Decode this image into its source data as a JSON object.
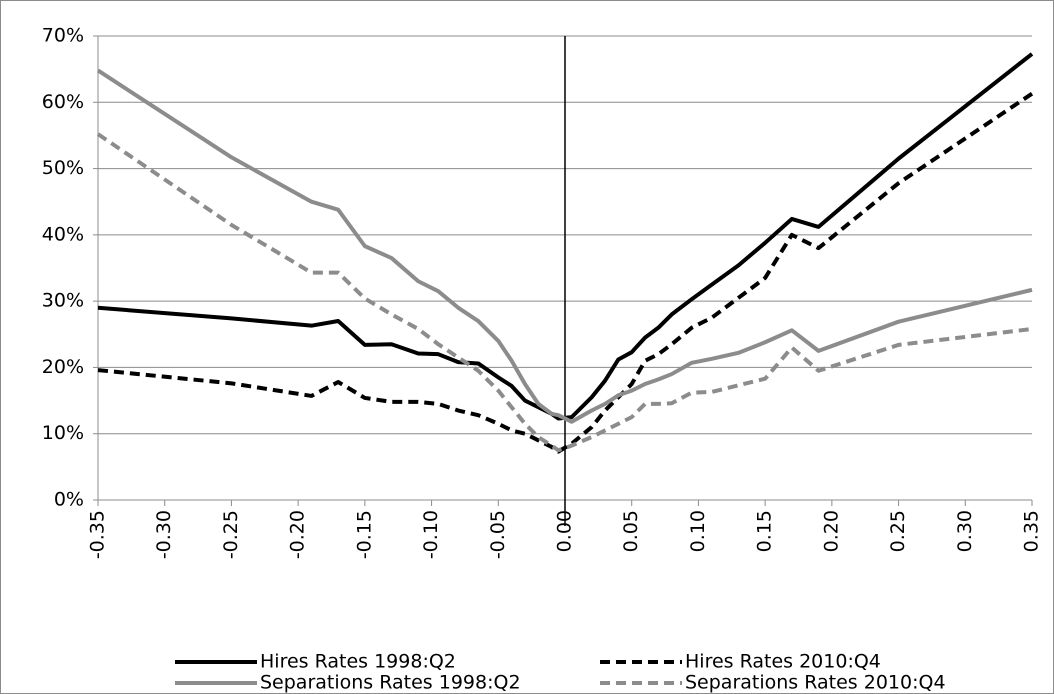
{
  "chart_data": {
    "type": "line",
    "x": [
      -0.35,
      -0.25,
      -0.19,
      -0.17,
      -0.15,
      -0.13,
      -0.11,
      -0.095,
      -0.08,
      -0.065,
      -0.05,
      -0.04,
      -0.03,
      -0.02,
      -0.01,
      -0.005,
      0.005,
      0.02,
      0.03,
      0.04,
      0.05,
      0.06,
      0.07,
      0.08,
      0.095,
      0.11,
      0.13,
      0.15,
      0.17,
      0.19,
      0.25,
      0.35
    ],
    "series": [
      {
        "name": "Hires Rates 1998:Q2",
        "color": "#000000",
        "style": "solid",
        "values": [
          29,
          27.4,
          26.3,
          27,
          23.4,
          23.5,
          22.1,
          22,
          20.8,
          20.6,
          18.5,
          17.2,
          15,
          14,
          13,
          12.3,
          12.5,
          15.5,
          18,
          21.2,
          22.3,
          24.5,
          26,
          28,
          30.3,
          32.5,
          35.4,
          38.8,
          42.4,
          41.2,
          51.5,
          67.3
        ]
      },
      {
        "name": "Hires Rates 2010:Q4",
        "color": "#000000",
        "style": "dashed",
        "values": [
          19.6,
          17.6,
          15.7,
          17.8,
          15.4,
          14.8,
          14.8,
          14.5,
          13.5,
          12.8,
          11.5,
          10.5,
          10,
          9,
          8,
          7.3,
          8.5,
          11,
          13.5,
          15.5,
          17.5,
          21,
          22,
          23.5,
          26,
          27.5,
          30.5,
          33.5,
          40,
          38,
          47.8,
          61.3
        ]
      },
      {
        "name": "Separations Rates 1998:Q2",
        "color": "#8c8c8c",
        "style": "solid",
        "values": [
          64.8,
          51.7,
          45,
          43.8,
          38.3,
          36.5,
          33,
          31.5,
          29,
          27,
          24,
          21,
          17.5,
          14.5,
          13,
          12.8,
          11.8,
          13.5,
          14.5,
          15.8,
          16.5,
          17.5,
          18.2,
          19,
          20.7,
          21.3,
          22.2,
          23.8,
          25.6,
          22.5,
          26.9,
          31.7
        ]
      },
      {
        "name": "Separations Rates 2010:Q4",
        "color": "#8c8c8c",
        "style": "dashed",
        "values": [
          55.2,
          41.5,
          34.3,
          34.3,
          30.4,
          28,
          25.8,
          23.5,
          21.5,
          19.5,
          16.5,
          14,
          11.5,
          9.5,
          8.2,
          7.5,
          8.2,
          9.5,
          10.5,
          11.5,
          12.5,
          14.5,
          14.5,
          14.6,
          16.2,
          16.3,
          17.3,
          18.3,
          23,
          19.5,
          23.4,
          25.8
        ]
      }
    ],
    "xlim": [
      -0.35,
      0.35
    ],
    "xticks": [
      {
        "value": -0.35,
        "label": "-0.35"
      },
      {
        "value": -0.3,
        "label": "-0.30"
      },
      {
        "value": -0.25,
        "label": "-0.25"
      },
      {
        "value": -0.2,
        "label": "-0.20"
      },
      {
        "value": -0.15,
        "label": "-0.15"
      },
      {
        "value": -0.1,
        "label": "-0.10"
      },
      {
        "value": -0.05,
        "label": "-0.05"
      },
      {
        "value": 0,
        "label": "0.00"
      },
      {
        "value": 0.05,
        "label": "0.05"
      },
      {
        "value": 0.1,
        "label": "0.10"
      },
      {
        "value": 0.15,
        "label": "0.15"
      },
      {
        "value": 0.2,
        "label": "0.20"
      },
      {
        "value": 0.25,
        "label": "0.25"
      },
      {
        "value": 0.3,
        "label": "0.30"
      },
      {
        "value": 0.35,
        "label": "0.35"
      }
    ],
    "ylim": [
      0,
      70
    ],
    "yticks": [
      {
        "value": 0,
        "label": "0%"
      },
      {
        "value": 10,
        "label": "10%"
      },
      {
        "value": 20,
        "label": "20%"
      },
      {
        "value": 30,
        "label": "30%"
      },
      {
        "value": 40,
        "label": "40%"
      },
      {
        "value": 50,
        "label": "50%"
      },
      {
        "value": 60,
        "label": "60%"
      },
      {
        "value": 70,
        "label": "70%"
      }
    ],
    "grid": true,
    "legend": "bottom"
  }
}
